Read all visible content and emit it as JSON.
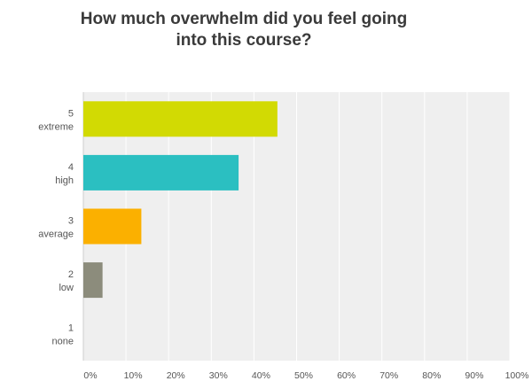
{
  "chart_data": {
    "type": "bar",
    "orientation": "horizontal",
    "title_lines": [
      "How much overwhelm did you feel going",
      "into this course?"
    ],
    "categories": [
      {
        "num": "5",
        "label": "extreme",
        "value": 45.5,
        "color": "#d2da03"
      },
      {
        "num": "4",
        "label": "high",
        "value": 36.4,
        "color": "#2bbfc1"
      },
      {
        "num": "3",
        "label": "average",
        "value": 13.6,
        "color": "#fbb000"
      },
      {
        "num": "2",
        "label": "low",
        "value": 4.5,
        "color": "#8c8c7c"
      },
      {
        "num": "1",
        "label": "none",
        "value": 0,
        "color": "#cccccc"
      }
    ],
    "xlim": [
      0,
      100
    ],
    "x_ticks": [
      "0%",
      "10%",
      "20%",
      "30%",
      "40%",
      "50%",
      "60%",
      "70%",
      "80%",
      "90%",
      "100%"
    ],
    "grid": true,
    "plot_background": "#efefef"
  }
}
